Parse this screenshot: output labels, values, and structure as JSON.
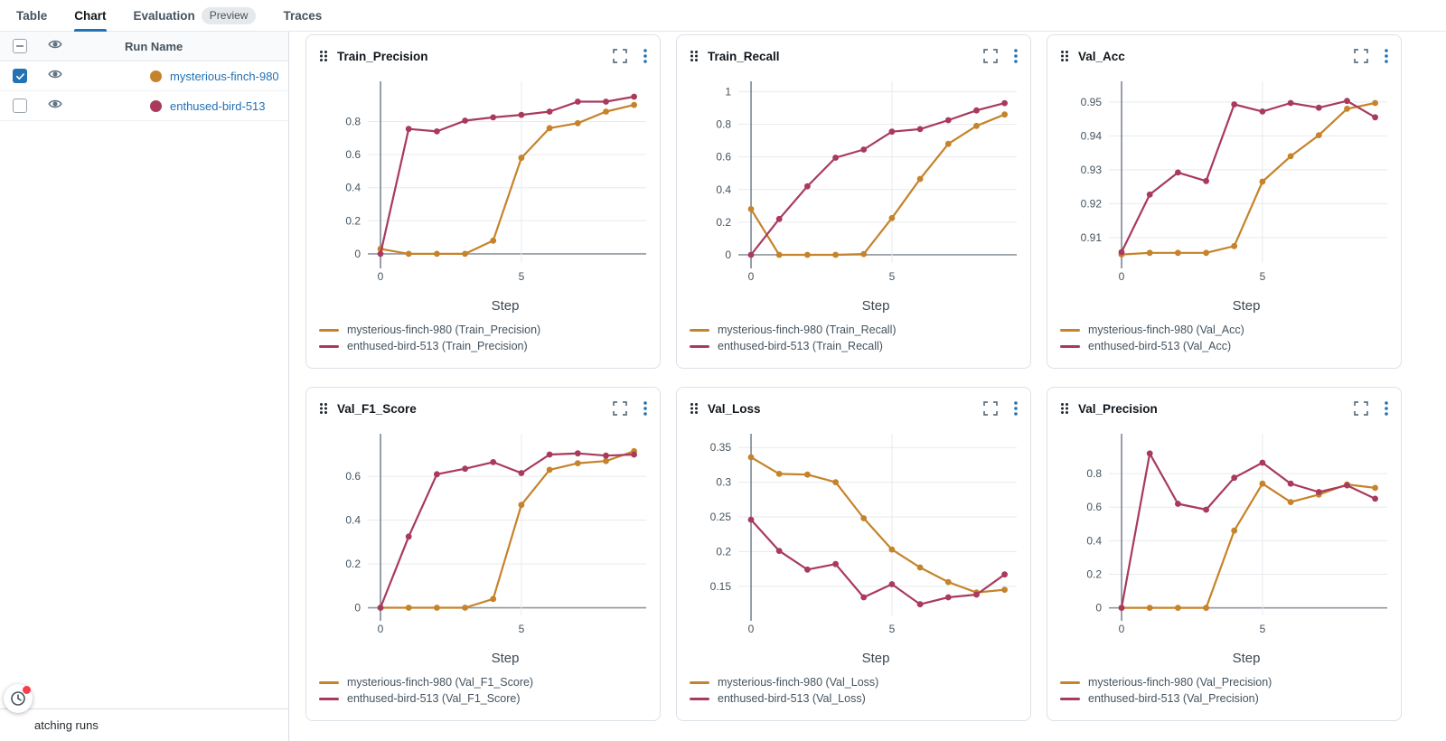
{
  "colors": {
    "accent": "#2272B4",
    "orange": "#C5832B",
    "crimson": "#A93A5C",
    "grid": "#E7EAEE",
    "axis": "#6A7685",
    "zero_line": "#8F979E",
    "tick_text": "#44535F",
    "xlabel_text": "#3C4852"
  },
  "nav": {
    "tabs": [
      {
        "label": "Table"
      },
      {
        "label": "Chart",
        "active": true
      },
      {
        "label": "Evaluation",
        "badge": "Preview"
      },
      {
        "label": "Traces"
      }
    ]
  },
  "sidebar": {
    "header": {
      "run_name_label": "Run Name"
    },
    "runs": [
      {
        "name": "mysterious-finch-980",
        "color": "#C5832B",
        "checked": true,
        "visible": true
      },
      {
        "name": "enthused-bird-513",
        "color": "#A93A5C",
        "checked": false,
        "visible": true
      }
    ],
    "footer_text": "atching runs"
  },
  "charts": [
    {
      "title": "Train_Precision",
      "legend": [
        "mysterious-finch-980 (Train_Precision)",
        "enthused-bird-513 (Train_Precision)"
      ],
      "chart_data": {
        "type": "line",
        "xlabel": "Step",
        "x": [
          0,
          1,
          2,
          3,
          4,
          5,
          6,
          7,
          8,
          9
        ],
        "xticks": [
          0,
          5
        ],
        "yticks": [
          0,
          0.2,
          0.4,
          0.6,
          0.8
        ],
        "ylim": [
          -0.055,
          1.01
        ],
        "series": [
          {
            "name": "mysterious-finch-980",
            "color": "#C5832B",
            "values": [
              0.03,
              0.0,
              0.0,
              0.0,
              0.08,
              0.58,
              0.76,
              0.79,
              0.86,
              0.9
            ]
          },
          {
            "name": "enthused-bird-513",
            "color": "#A93A5C",
            "values": [
              0.0,
              0.755,
              0.74,
              0.805,
              0.825,
              0.84,
              0.86,
              0.92,
              0.92,
              0.95
            ]
          }
        ]
      }
    },
    {
      "title": "Train_Recall",
      "legend": [
        "mysterious-finch-980 (Train_Recall)",
        "enthused-bird-513 (Train_Recall)"
      ],
      "chart_data": {
        "type": "line",
        "xlabel": "Step",
        "x": [
          0,
          1,
          2,
          3,
          4,
          5,
          6,
          7,
          8,
          9
        ],
        "xticks": [
          0,
          5
        ],
        "yticks": [
          0,
          0.2,
          0.4,
          0.6,
          0.8,
          1
        ],
        "ylim": [
          -0.05,
          1.03
        ],
        "series": [
          {
            "name": "mysterious-finch-980",
            "color": "#C5832B",
            "values": [
              0.28,
              0.0,
              0.0,
              0.0,
              0.005,
              0.225,
              0.465,
              0.68,
              0.79,
              0.86
            ]
          },
          {
            "name": "enthused-bird-513",
            "color": "#A93A5C",
            "values": [
              0.0,
              0.22,
              0.42,
              0.595,
              0.645,
              0.755,
              0.77,
              0.825,
              0.885,
              0.93
            ]
          }
        ]
      }
    },
    {
      "title": "Val_Acc",
      "legend": [
        "mysterious-finch-980 (Val_Acc)",
        "enthused-bird-513 (Val_Acc)"
      ],
      "chart_data": {
        "type": "line",
        "xlabel": "Step",
        "x": [
          0,
          1,
          2,
          3,
          4,
          5,
          6,
          7,
          8,
          9
        ],
        "xticks": [
          0,
          5
        ],
        "yticks": [
          0.91,
          0.92,
          0.93,
          0.94,
          0.95
        ],
        "ylim": [
          0.9025,
          0.9545
        ],
        "series": [
          {
            "name": "mysterious-finch-980",
            "color": "#C5832B",
            "values": [
              0.905,
              0.9055,
              0.9055,
              0.9055,
              0.9075,
              0.9265,
              0.934,
              0.9402,
              0.948,
              0.9497
            ]
          },
          {
            "name": "enthused-bird-513",
            "color": "#A93A5C",
            "values": [
              0.9057,
              0.9227,
              0.9292,
              0.9267,
              0.9493,
              0.9472,
              0.9497,
              0.9483,
              0.9503,
              0.9455
            ]
          }
        ]
      }
    },
    {
      "title": "Val_F1_Score",
      "legend": [
        "mysterious-finch-980 (Val_F1_Score)",
        "enthused-bird-513 (Val_F1_Score)"
      ],
      "chart_data": {
        "type": "line",
        "xlabel": "Step",
        "x": [
          0,
          1,
          2,
          3,
          4,
          5,
          6,
          7,
          8,
          9
        ],
        "xticks": [
          0,
          5
        ],
        "yticks": [
          0,
          0.2,
          0.4,
          0.6
        ],
        "ylim": [
          -0.035,
          0.77
        ],
        "series": [
          {
            "name": "mysterious-finch-980",
            "color": "#C5832B",
            "values": [
              0.0,
              0.0,
              0.0,
              0.0,
              0.04,
              0.47,
              0.63,
              0.66,
              0.67,
              0.715
            ]
          },
          {
            "name": "enthused-bird-513",
            "color": "#A93A5C",
            "values": [
              0.0,
              0.325,
              0.61,
              0.635,
              0.665,
              0.615,
              0.7,
              0.705,
              0.695,
              0.7
            ]
          }
        ]
      }
    },
    {
      "title": "Val_Loss",
      "legend": [
        "mysterious-finch-980 (Val_Loss)",
        "enthused-bird-513 (Val_Loss)"
      ],
      "chart_data": {
        "type": "line",
        "xlabel": "Step",
        "x": [
          0,
          1,
          2,
          3,
          4,
          5,
          6,
          7,
          8,
          9
        ],
        "xticks": [
          0,
          5
        ],
        "yticks": [
          0.15,
          0.2,
          0.25,
          0.3,
          0.35
        ],
        "ylim": [
          0.108,
          0.362
        ],
        "series": [
          {
            "name": "mysterious-finch-980",
            "color": "#C5832B",
            "values": [
              0.336,
              0.312,
              0.311,
              0.3,
              0.248,
              0.203,
              0.177,
              0.156,
              0.141,
              0.145
            ]
          },
          {
            "name": "enthused-bird-513",
            "color": "#A93A5C",
            "values": [
              0.246,
              0.201,
              0.174,
              0.182,
              0.134,
              0.153,
              0.124,
              0.134,
              0.138,
              0.167
            ]
          }
        ]
      }
    },
    {
      "title": "Val_Precision",
      "legend": [
        "mysterious-finch-980 (Val_Precision)",
        "enthused-bird-513 (Val_Precision)"
      ],
      "chart_data": {
        "type": "line",
        "xlabel": "Step",
        "x": [
          0,
          1,
          2,
          3,
          4,
          5,
          6,
          7,
          8,
          9
        ],
        "xticks": [
          0,
          5
        ],
        "yticks": [
          0,
          0.2,
          0.4,
          0.6,
          0.8
        ],
        "ylim": [
          -0.045,
          1.005
        ],
        "series": [
          {
            "name": "mysterious-finch-980",
            "color": "#C5832B",
            "values": [
              0.0,
              0.0,
              0.0,
              0.0,
              0.46,
              0.74,
              0.63,
              0.675,
              0.735,
              0.715
            ]
          },
          {
            "name": "enthused-bird-513",
            "color": "#A93A5C",
            "values": [
              0.0,
              0.92,
              0.62,
              0.585,
              0.775,
              0.865,
              0.74,
              0.69,
              0.73,
              0.65
            ]
          }
        ]
      }
    }
  ]
}
